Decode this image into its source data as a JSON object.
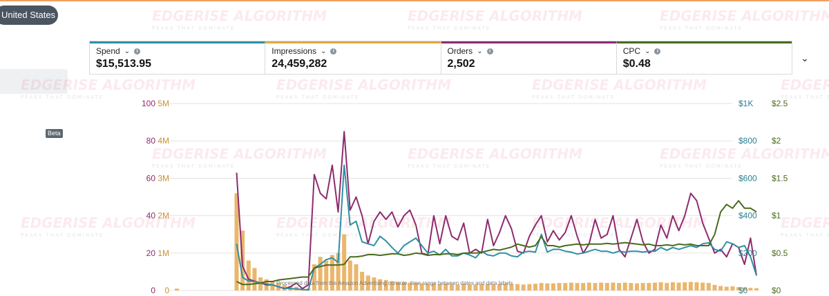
{
  "header": {
    "region_label": "United States",
    "beta_badge": "Beta",
    "expand_icon": "chevron-down-icon"
  },
  "watermark": {
    "text": "EDGERISE ALGORITHM",
    "subtext": "PEAKS THAT DOMINATE"
  },
  "metrics": [
    {
      "label": "Spend",
      "value": "$15,513.95",
      "color": "#2e8fa6"
    },
    {
      "label": "Impressions",
      "value": "24,459,282",
      "color": "#e0a93c"
    },
    {
      "label": "Orders",
      "value": "2,502",
      "color": "#8e2a6e"
    },
    {
      "label": "CPC",
      "value": "$0.48",
      "color": "#4a6a1c"
    }
  ],
  "colors": {
    "orders": "#8e2a6e",
    "impressions": "#e8a952",
    "spend": "#2e8fa6",
    "cpc": "#4a6a1c",
    "grid": "#e3e3e3"
  },
  "footer_note": "Processed data from the Amazon Advertising console, time range between dates and data labels",
  "chart_data": {
    "type": "line",
    "axes": {
      "orders": {
        "ticks": [
          "100",
          "80",
          "60",
          "40",
          "20",
          "0"
        ],
        "range": [
          0,
          100
        ]
      },
      "impressions": {
        "ticks": [
          "5M",
          "4M",
          "3M",
          "2M",
          "1M",
          "0"
        ],
        "range": [
          0,
          5000000
        ]
      },
      "spend": {
        "ticks": [
          "$1K",
          "$800",
          "$600",
          "$400",
          "$200",
          "$0"
        ],
        "range": [
          0,
          1000
        ]
      },
      "cpc": {
        "ticks": [
          "$2.5",
          "$2",
          "$1.5",
          "$1",
          "$0.5",
          "$0"
        ],
        "range": [
          0,
          2.5
        ]
      }
    },
    "series": [
      {
        "name": "Orders",
        "axis": "orders",
        "style": "line",
        "color": "#8e2a6e",
        "values": [
          null,
          null,
          null,
          null,
          null,
          null,
          null,
          null,
          null,
          null,
          63,
          13,
          6,
          5,
          4,
          3,
          3,
          2,
          1,
          2,
          4,
          1,
          3,
          62,
          52,
          49,
          67,
          42,
          85,
          43,
          50,
          40,
          25,
          37,
          42,
          38,
          42,
          34,
          40,
          43,
          35,
          20,
          19,
          40,
          25,
          40,
          29,
          27,
          36,
          20,
          22,
          20,
          38,
          24,
          31,
          40,
          33,
          21,
          20,
          29,
          35,
          40,
          26,
          32,
          27,
          31,
          40,
          29,
          20,
          25,
          38,
          28,
          30,
          40,
          22,
          18,
          28,
          38,
          26,
          20,
          22,
          35,
          28,
          40,
          32,
          40,
          52,
          48,
          36,
          28,
          20,
          22,
          18,
          25,
          23,
          14,
          28,
          8
        ]
      },
      {
        "name": "Spend",
        "axis": "spend",
        "style": "line",
        "color": "#2e8fa6",
        "values": [
          null,
          null,
          null,
          null,
          null,
          null,
          null,
          null,
          null,
          null,
          250,
          70,
          50,
          48,
          40,
          35,
          30,
          20,
          12,
          10,
          8,
          5,
          3,
          120,
          140,
          165,
          175,
          150,
          670,
          350,
          370,
          260,
          250,
          240,
          290,
          265,
          230,
          200,
          240,
          260,
          280,
          240,
          200,
          210,
          190,
          220,
          185,
          185,
          200,
          190,
          175,
          210,
          190,
          185,
          200,
          200,
          185,
          180,
          205,
          210,
          205,
          300,
          205,
          220,
          220,
          210,
          205,
          195,
          200,
          210,
          220,
          210,
          210,
          200,
          210,
          205,
          210,
          210,
          205,
          210,
          210,
          230,
          215,
          230,
          220,
          230,
          240,
          230,
          250,
          255,
          220,
          210,
          260,
          250,
          230,
          240,
          180,
          80
        ]
      },
      {
        "name": "CPC",
        "axis": "cpc",
        "style": "line",
        "color": "#4a6a1c",
        "values": [
          null,
          null,
          null,
          null,
          null,
          null,
          null,
          null,
          null,
          null,
          0.12,
          0.08,
          0.08,
          0.09,
          0.1,
          0.12,
          0.12,
          0.14,
          0.15,
          0.16,
          0.17,
          0.18,
          0.18,
          0.3,
          0.32,
          0.34,
          0.34,
          0.34,
          0.35,
          0.45,
          0.45,
          0.46,
          0.48,
          0.48,
          0.47,
          0.48,
          0.49,
          0.49,
          0.47,
          0.48,
          0.5,
          0.49,
          0.47,
          0.48,
          0.48,
          0.49,
          0.49,
          0.48,
          0.5,
          0.5,
          0.5,
          0.51,
          0.53,
          0.55,
          0.54,
          0.56,
          0.58,
          0.62,
          0.6,
          0.58,
          0.6,
          0.72,
          0.6,
          0.6,
          0.58,
          0.6,
          0.61,
          0.62,
          0.61,
          0.62,
          0.62,
          0.62,
          0.63,
          0.62,
          0.63,
          0.64,
          0.63,
          0.62,
          0.61,
          0.62,
          0.6,
          0.6,
          0.61,
          0.6,
          0.62,
          0.61,
          0.62,
          0.6,
          0.6,
          0.6,
          0.75,
          1.05,
          1.15,
          1.1,
          1.2,
          1.1,
          1.1,
          1.05
        ]
      },
      {
        "name": "Impressions",
        "axis": "impressions",
        "style": "bar",
        "color": "#e8a952",
        "values": [
          50000,
          0,
          0,
          0,
          0,
          0,
          0,
          0,
          0,
          0,
          2600000,
          1600000,
          800000,
          600000,
          350000,
          300000,
          250000,
          200000,
          150000,
          120000,
          100000,
          80000,
          60000,
          700000,
          900000,
          800000,
          950000,
          1000000,
          1500000,
          800000,
          700000,
          500000,
          400000,
          350000,
          300000,
          280000,
          250000,
          230000,
          220000,
          210000,
          200000,
          190000,
          180000,
          180000,
          170000,
          180000,
          170000,
          160000,
          170000,
          160000,
          160000,
          170000,
          170000,
          160000,
          170000,
          180000,
          170000,
          170000,
          160000,
          170000,
          180000,
          200000,
          190000,
          190000,
          200000,
          200000,
          210000,
          200000,
          200000,
          210000,
          200000,
          210000,
          200000,
          210000,
          200000,
          210000,
          200000,
          190000,
          200000,
          200000,
          210000,
          220000,
          200000,
          220000,
          210000,
          220000,
          230000,
          220000,
          210000,
          200000,
          150000,
          120000,
          100000,
          110000,
          90000,
          80000,
          70000,
          60000
        ]
      }
    ]
  }
}
